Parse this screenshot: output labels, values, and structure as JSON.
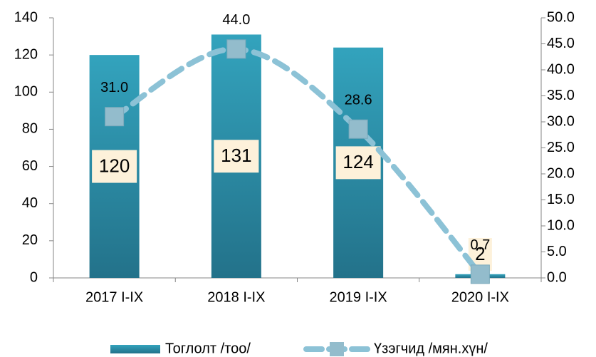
{
  "chart_data": {
    "type": "bar",
    "categories": [
      "2017 I-IX",
      "2018 I-IX",
      "2019 I-IX",
      "2020 I-IX"
    ],
    "series": [
      {
        "name": "Тоглолт /тоо/",
        "color": "#2b8ea8",
        "values": [
          120,
          131,
          124,
          2
        ]
      },
      {
        "name": "Үзэгчид /мян.хүн/",
        "color": "#8cc2d6",
        "type": "line",
        "axis": "y2",
        "values": [
          31.0,
          44.0,
          28.6,
          0.7
        ],
        "value_labels": [
          "31.0",
          "44.0",
          "28.6",
          "0.7"
        ]
      }
    ],
    "ylim": [
      0,
      140
    ],
    "yticks": [
      0,
      20,
      40,
      60,
      80,
      100,
      120,
      140
    ],
    "y2lim": [
      0,
      50
    ],
    "y2ticks": [
      {
        "value": 0,
        "label": "0.0"
      },
      {
        "value": 5,
        "label": "5.0"
      },
      {
        "value": 10,
        "label": "10.0"
      },
      {
        "value": 15,
        "label": "15.0"
      },
      {
        "value": 20,
        "label": "20.0"
      },
      {
        "value": 25,
        "label": "25.0"
      },
      {
        "value": 30,
        "label": "30.0"
      },
      {
        "value": 35,
        "label": "35.0"
      },
      {
        "value": 40,
        "label": "40.0"
      },
      {
        "value": 45,
        "label": "45.0"
      },
      {
        "value": 50,
        "label": "50.0"
      }
    ],
    "legend": "bottom"
  }
}
